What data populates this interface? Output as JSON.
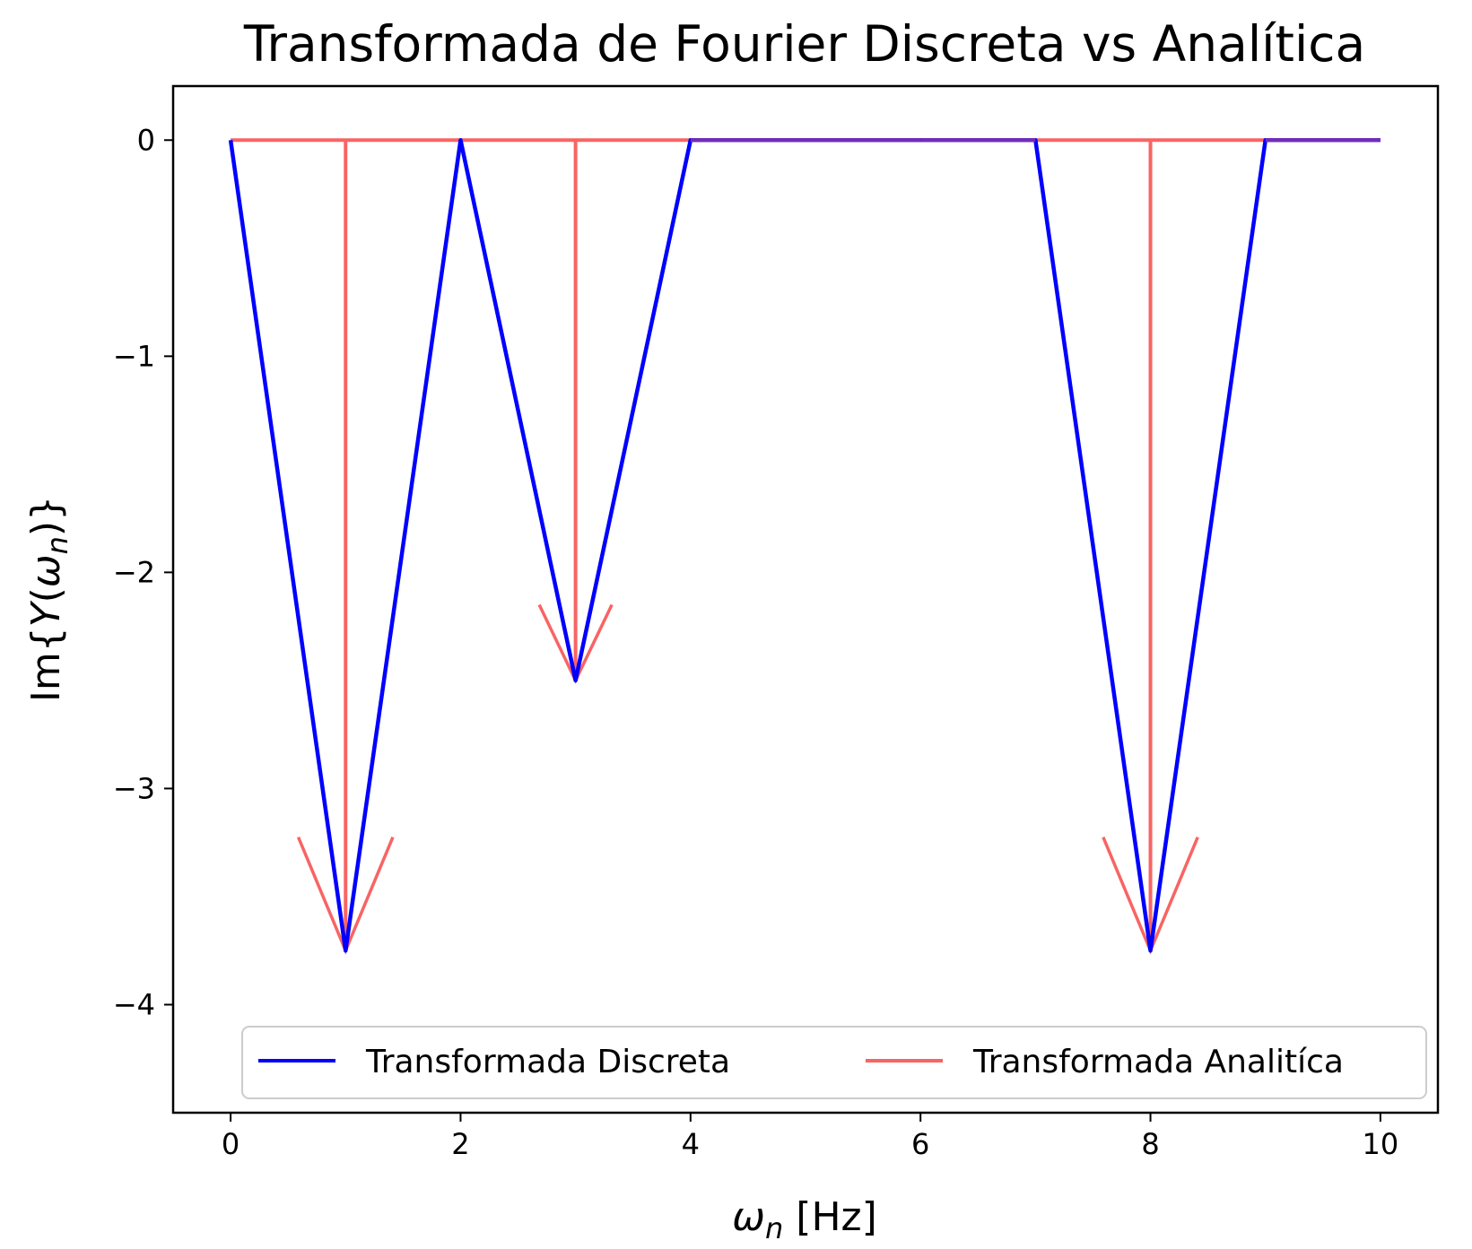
{
  "chart_data": {
    "type": "line",
    "title": "Transformada de Fourier Discreta vs Analítica",
    "xlabel_main": "ω",
    "xlabel_sub": "n",
    "xlabel_unit": " [Hz]",
    "ylabel_prefix": "Im",
    "ylabel_open": "{",
    "ylabel_func": "Y",
    "ylabel_paren_open": "(",
    "ylabel_var": "ω",
    "ylabel_sub": "n",
    "ylabel_paren_close": ")",
    "ylabel_close": "}",
    "xlim": [
      -0.5,
      10.5
    ],
    "ylim": [
      -4.5,
      0.25
    ],
    "xticks": [
      0,
      2,
      4,
      6,
      8,
      10
    ],
    "xtick_labels": [
      "0",
      "2",
      "4",
      "6",
      "8",
      "10"
    ],
    "yticks": [
      0,
      -1,
      -2,
      -3,
      -4
    ],
    "ytick_labels": [
      "0",
      "−1",
      "−2",
      "−3",
      "−4"
    ],
    "grid": false,
    "legend_position": "lower-center",
    "series": [
      {
        "name": "Transformada Discreta",
        "color": "#0000ff",
        "x": [
          0,
          1,
          2,
          3,
          4,
          5,
          6,
          7,
          8,
          9,
          10
        ],
        "y": [
          0,
          -3.75,
          0,
          -2.5,
          0,
          0,
          0,
          0,
          -3.75,
          0,
          0
        ]
      },
      {
        "name": "Transformada Analitíca",
        "color": "#f86464",
        "baseline": 0,
        "baseline_x": [
          0,
          10
        ],
        "arrows": [
          {
            "x": 1,
            "y": -3.75
          },
          {
            "x": 3,
            "y": -2.5
          },
          {
            "x": 8,
            "y": -3.75
          }
        ]
      }
    ]
  }
}
